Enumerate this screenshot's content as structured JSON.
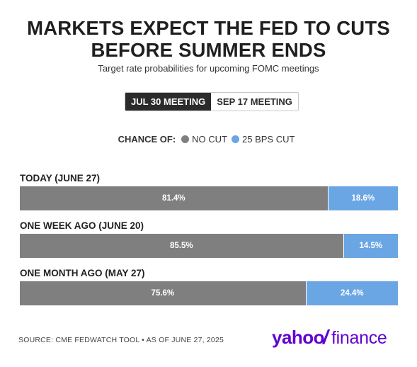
{
  "title_line1": "MARKETS EXPECT THE FED TO CUTS",
  "title_line2": "BEFORE SUMMER ENDS",
  "subtitle": "Target rate probabilities for upcoming FOMC meetings",
  "tabs": [
    {
      "label": "JUL 30 MEETING",
      "active": true
    },
    {
      "label": "SEP 17 MEETING",
      "active": false
    }
  ],
  "legend": {
    "title": "CHANCE OF:",
    "items": [
      {
        "label": "NO CUT",
        "color": "#7f7f7f"
      },
      {
        "label": "25 BPS CUT",
        "color": "#6aa6e4"
      }
    ]
  },
  "chart_data": {
    "type": "bar",
    "orientation": "horizontal",
    "stacked": true,
    "normalized_to": 100,
    "categories": [
      "TODAY (JUNE 27)",
      "ONE WEEK AGO (JUNE 20)",
      "ONE MONTH AGO (MAY 27)"
    ],
    "series": [
      {
        "name": "NO CUT",
        "color": "#7f7f7f",
        "values": [
          81.4,
          85.5,
          75.6
        ],
        "labels": [
          "81.4%",
          "85.5%",
          "75.6%"
        ]
      },
      {
        "name": "25 BPS CUT",
        "color": "#6aa6e4",
        "values": [
          18.6,
          14.5,
          24.4
        ],
        "labels": [
          "18.6%",
          "14.5%",
          "24.4%"
        ]
      }
    ],
    "grid": false,
    "legend_placement": "top-center"
  },
  "footer": {
    "source": "SOURCE: CME FEDWATCH TOOL • AS OF JUNE 27, 2025",
    "logo_text_yahoo": "yahoo",
    "logo_text_slash": "/",
    "logo_text_finance": "finance",
    "logo_color": "#5f01d1"
  }
}
